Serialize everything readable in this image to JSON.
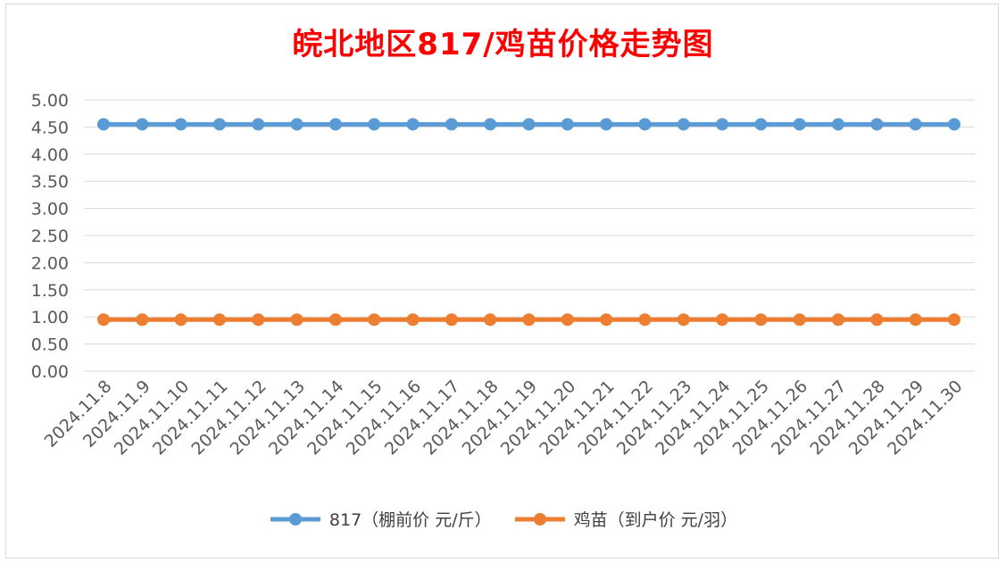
{
  "chart_data": {
    "type": "line",
    "title": "皖北地区817/鸡苗价格走势图",
    "categories": [
      "2024.11.8",
      "2024.11.9",
      "2024.11.10",
      "2024.11.11",
      "2024.11.12",
      "2024.11.13",
      "2024.11.14",
      "2024.11.15",
      "2024.11.16",
      "2024.11.17",
      "2024.11.18",
      "2024.11.19",
      "2024.11.20",
      "2024.11.21",
      "2024.11.22",
      "2024.11.23",
      "2024.11.24",
      "2024.11.25",
      "2024.11.26",
      "2024.11.27",
      "2024.11.28",
      "2024.11.29",
      "2024.11.30"
    ],
    "series": [
      {
        "name": "817（棚前价 元/斤）",
        "color": "#5b9bd5",
        "values": [
          4.55,
          4.55,
          4.55,
          4.55,
          4.55,
          4.55,
          4.55,
          4.55,
          4.55,
          4.55,
          4.55,
          4.55,
          4.55,
          4.55,
          4.55,
          4.55,
          4.55,
          4.55,
          4.55,
          4.55,
          4.55,
          4.55,
          4.55
        ]
      },
      {
        "name": "鸡苗（到户价 元/羽）",
        "color": "#ed7d31",
        "values": [
          0.95,
          0.95,
          0.95,
          0.95,
          0.95,
          0.95,
          0.95,
          0.95,
          0.95,
          0.95,
          0.95,
          0.95,
          0.95,
          0.95,
          0.95,
          0.95,
          0.95,
          0.95,
          0.95,
          0.95,
          0.95,
          0.95,
          0.95
        ]
      }
    ],
    "ylim": [
      0,
      5
    ],
    "yticks": [
      "0.00",
      "0.50",
      "1.00",
      "1.50",
      "2.00",
      "2.50",
      "3.00",
      "3.50",
      "4.00",
      "4.50",
      "5.00"
    ],
    "xlabel": "",
    "ylabel": "",
    "grid": true,
    "legend_position": "bottom"
  }
}
